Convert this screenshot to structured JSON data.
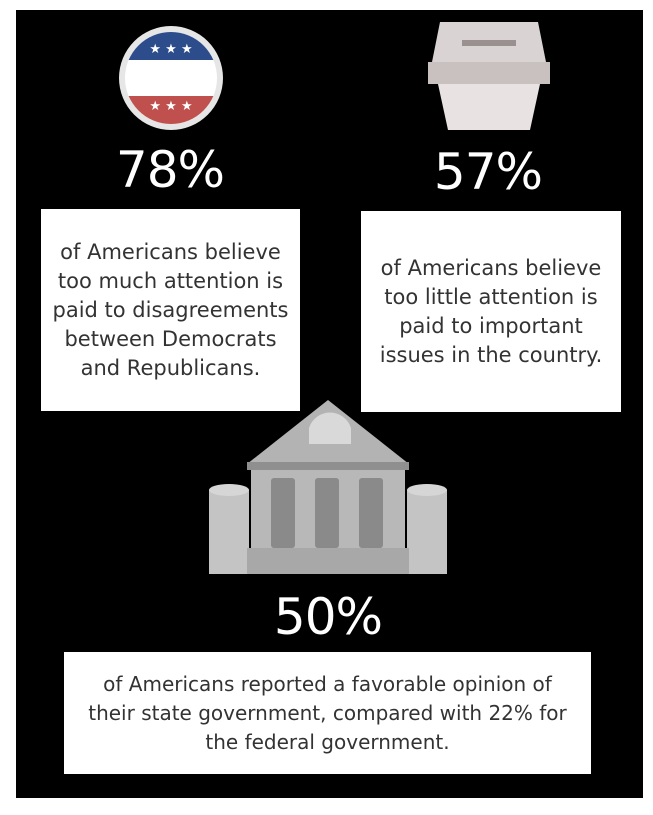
{
  "stats": [
    {
      "value": "78%",
      "text": "of Americans believe too much attention is paid to disagreements between Democrats and Republicans.",
      "icon": "flag-badge-icon"
    },
    {
      "value": "57%",
      "text": "of Americans believe too little attention is paid to important issues in the country.",
      "icon": "ballot-box-icon"
    },
    {
      "value": "50%",
      "text": "of Americans reported a favorable opinion of their state government, compared with 22% for the federal government.",
      "icon": "government-building-icon"
    }
  ],
  "colors": {
    "background": "#000000",
    "box": "#ffffff",
    "text": "#333333",
    "flag_red": "#c0504d",
    "flag_blue": "#2c4c8c",
    "building": "#a6a6a6"
  }
}
